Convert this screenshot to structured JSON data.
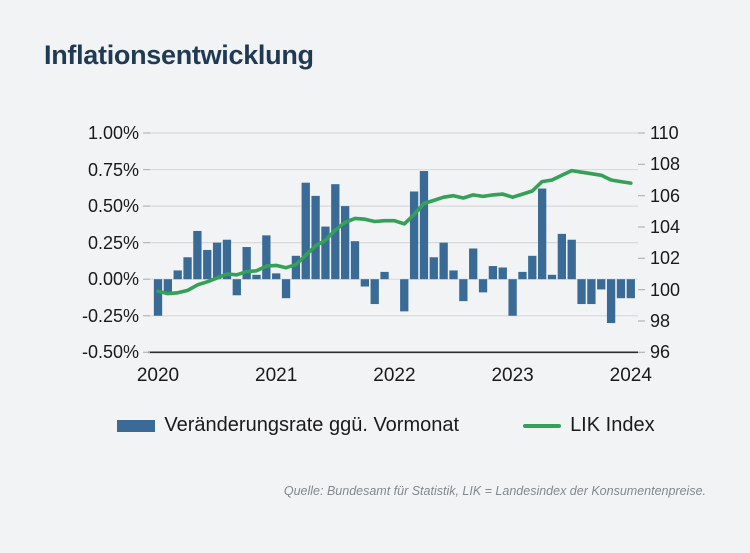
{
  "page": {
    "background": "#f1f3f5"
  },
  "header": {
    "title": "Inflationsentwicklung",
    "title_color": "#1f3a52"
  },
  "legend": {
    "bar_label": "Veränderungsrate ggü. Vormonat",
    "line_label": "LIK Index"
  },
  "footer": {
    "source": "Quelle: Bundesamt für Statistik, LIK = Landesindex der Konsumentenpreise."
  },
  "colors": {
    "bar": "#3a6b97",
    "line": "#35a157",
    "grid": "#d8dbde",
    "axis_line": "#2b2e31",
    "tick": "#b2b6ba",
    "axis_text": "#1a1a1a"
  },
  "chart_data": {
    "type": "bar",
    "title": "Inflationsentwicklung",
    "x": [
      "2020-01",
      "2020-02",
      "2020-03",
      "2020-04",
      "2020-05",
      "2020-06",
      "2020-07",
      "2020-08",
      "2020-09",
      "2020-10",
      "2020-11",
      "2020-12",
      "2021-01",
      "2021-02",
      "2021-03",
      "2021-04",
      "2021-05",
      "2021-06",
      "2021-07",
      "2021-08",
      "2021-09",
      "2021-10",
      "2021-11",
      "2021-12",
      "2022-01",
      "2022-02",
      "2022-03",
      "2022-04",
      "2022-05",
      "2022-06",
      "2022-07",
      "2022-08",
      "2022-09",
      "2022-10",
      "2022-11",
      "2022-12",
      "2023-01",
      "2023-02",
      "2023-03",
      "2023-04",
      "2023-05",
      "2023-06",
      "2023-07",
      "2023-08",
      "2023-09",
      "2023-10",
      "2023-11",
      "2023-12",
      "2024-01"
    ],
    "x_tick_labels": [
      "2020",
      "2021",
      "2022",
      "2023",
      "2024"
    ],
    "series": [
      {
        "name": "Veränderungsrate ggü. Vormonat",
        "type": "bar",
        "axis": "left",
        "unit": "%",
        "color": "#3a6b97",
        "values": [
          -0.25,
          -0.1,
          0.06,
          0.15,
          0.33,
          0.2,
          0.25,
          0.27,
          -0.11,
          0.22,
          0.03,
          0.3,
          0.04,
          -0.13,
          0.16,
          0.66,
          0.57,
          0.36,
          0.65,
          0.5,
          0.26,
          -0.05,
          -0.17,
          0.05,
          0.0,
          -0.22,
          0.6,
          0.74,
          0.15,
          0.25,
          0.06,
          -0.15,
          0.21,
          -0.09,
          0.09,
          0.08,
          -0.25,
          0.05,
          0.16,
          0.62,
          0.03,
          0.31,
          0.27,
          -0.17,
          -0.17,
          -0.07,
          -0.3,
          -0.13,
          -0.13
        ]
      },
      {
        "name": "LIK Index",
        "type": "line",
        "axis": "right",
        "color": "#35a157",
        "values": [
          99.9,
          99.75,
          99.8,
          99.95,
          100.3,
          100.5,
          100.75,
          101.0,
          100.95,
          101.15,
          101.2,
          101.5,
          101.55,
          101.4,
          101.6,
          102.2,
          102.8,
          103.15,
          103.8,
          104.3,
          104.55,
          104.5,
          104.35,
          104.4,
          104.4,
          104.2,
          104.8,
          105.5,
          105.7,
          105.9,
          106.0,
          105.85,
          106.05,
          105.95,
          106.05,
          106.1,
          105.9,
          106.1,
          106.3,
          106.9,
          107.0,
          107.3,
          107.6,
          107.5,
          107.4,
          107.3,
          107.0,
          106.9,
          106.8
        ]
      }
    ],
    "left_axis": {
      "tick_labels": [
        "1.00%",
        "0.75%",
        "0.50%",
        "0.25%",
        "0.00%",
        "-0.25%",
        "-0.50%"
      ],
      "min": -0.5,
      "max": 1.0,
      "unit": "%"
    },
    "right_axis": {
      "tick_labels": [
        "110",
        "108",
        "106",
        "104",
        "102",
        "100",
        "98",
        "96"
      ],
      "min": 96,
      "max": 110
    },
    "grid": true,
    "legend_position": "bottom"
  }
}
